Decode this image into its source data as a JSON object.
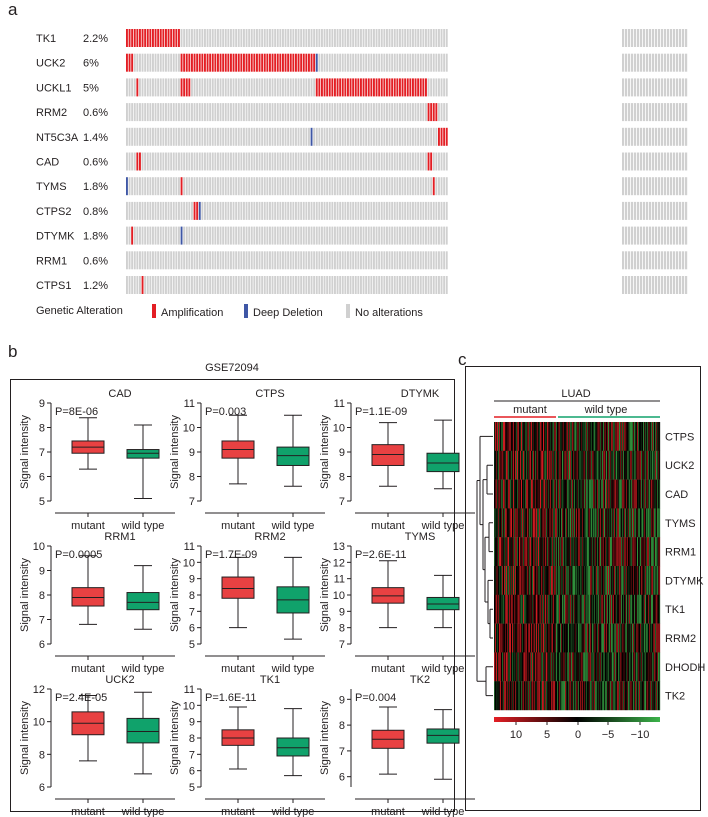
{
  "panel_labels": {
    "a": "a",
    "b": "b",
    "c": "c"
  },
  "colors": {
    "amplification": "#e31e24",
    "deep_deletion": "#3f57a6",
    "no_alteration": "#d0d0d0",
    "box_mutant": "#e84142",
    "box_wildtype": "#10a26b",
    "mutant_line": "#e31e24",
    "wildtype_line": "#10a26b",
    "heat_high": "#e31e24",
    "heat_mid": "#000000",
    "heat_low": "#3cb34a"
  },
  "chart_data": [
    {
      "type": "heatmap",
      "variant": "oncoprint",
      "genes": [
        {
          "name": "TK1",
          "pct": "2.2%"
        },
        {
          "name": "UCK2",
          "pct": "6%"
        },
        {
          "name": "UCKL1",
          "pct": "5%"
        },
        {
          "name": "RRM2",
          "pct": "0.6%"
        },
        {
          "name": "NT5C3A",
          "pct": "1.4%"
        },
        {
          "name": "CAD",
          "pct": "0.6%"
        },
        {
          "name": "TYMS",
          "pct": "1.8%"
        },
        {
          "name": "CTPS2",
          "pct": "0.8%"
        },
        {
          "name": "DTYMK",
          "pct": "1.8%"
        },
        {
          "name": "RRM1",
          "pct": "0.6%"
        },
        {
          "name": "CTPS1",
          "pct": "1.2%"
        }
      ],
      "n_samples_shown": 124,
      "n_samples_tail": 22,
      "alterations": [
        {
          "gene": 0,
          "type": "amp",
          "samples": [
            0,
            1,
            2,
            3,
            4,
            5,
            6,
            7,
            8,
            9,
            10,
            11,
            12,
            13,
            14,
            15,
            16,
            17,
            18,
            19,
            20
          ]
        },
        {
          "gene": 1,
          "type": "amp",
          "samples": [
            0,
            1,
            2,
            21,
            22,
            23,
            24,
            25,
            26,
            27,
            28,
            29,
            30,
            31,
            32,
            33,
            34,
            35,
            36,
            37,
            38,
            39,
            40,
            41,
            42,
            43,
            44,
            45,
            46,
            47,
            48,
            49,
            50,
            51,
            52,
            53,
            54,
            55,
            56,
            57,
            58,
            59,
            60,
            61,
            62,
            63,
            64,
            65,
            66,
            67,
            68,
            69,
            70,
            71,
            72
          ]
        },
        {
          "gene": 1,
          "type": "del",
          "samples": [
            73
          ]
        },
        {
          "gene": 2,
          "type": "amp",
          "samples": [
            4,
            21,
            22,
            23,
            24,
            73,
            74,
            75,
            76,
            77,
            78,
            79,
            80,
            81,
            82,
            83,
            84,
            85,
            86,
            87,
            88,
            89,
            90,
            91,
            92,
            93,
            94,
            95,
            96,
            97,
            98,
            99,
            100,
            101,
            102,
            103,
            104,
            105,
            106,
            107,
            108,
            109,
            110,
            111,
            112,
            113,
            114,
            115
          ]
        },
        {
          "gene": 3,
          "type": "amp",
          "samples": [
            116,
            117,
            118,
            119
          ]
        },
        {
          "gene": 4,
          "type": "amp",
          "samples": [
            120,
            121,
            122,
            123,
            124,
            125,
            126,
            127,
            128,
            129
          ]
        },
        {
          "gene": 4,
          "type": "del",
          "samples": [
            71,
            130
          ]
        },
        {
          "gene": 5,
          "type": "amp",
          "samples": [
            4,
            5,
            116,
            117
          ]
        },
        {
          "gene": 6,
          "type": "amp",
          "samples": [
            21,
            118,
            131,
            132,
            133,
            134,
            135,
            136,
            137,
            138
          ]
        },
        {
          "gene": 6,
          "type": "del",
          "samples": [
            0,
            139
          ]
        },
        {
          "gene": 7,
          "type": "amp",
          "samples": [
            26,
            27
          ]
        },
        {
          "gene": 7,
          "type": "del",
          "samples": [
            28,
            140,
            141,
            142
          ]
        },
        {
          "gene": 8,
          "type": "amp",
          "samples": [
            2,
            143,
            144,
            145,
            146,
            147,
            148,
            149,
            150
          ]
        },
        {
          "gene": 8,
          "type": "del",
          "samples": [
            21,
            151,
            152,
            153,
            154
          ]
        },
        {
          "gene": 9,
          "type": "amp",
          "samples": [
            155
          ]
        },
        {
          "gene": 9,
          "type": "del",
          "samples": [
            150,
            156
          ]
        },
        {
          "gene": 10,
          "type": "amp",
          "samples": [
            6,
            132,
            157,
            158,
            159,
            160,
            161,
            162,
            163
          ]
        }
      ],
      "legend": {
        "title": "Genetic Alteration",
        "items": [
          {
            "key": "amp",
            "label": "Amplification"
          },
          {
            "key": "del",
            "label": "Deep Deletion"
          },
          {
            "key": "none",
            "label": "No alterations"
          }
        ]
      }
    },
    {
      "type": "box",
      "title": "GSE72094",
      "ylabel": "Signal intensity",
      "categories": [
        "mutant",
        "wild type"
      ],
      "plots": [
        {
          "name": "CAD",
          "p": "P=8E-06",
          "yticks": [
            5,
            6,
            7,
            8,
            9
          ],
          "ylim": [
            5,
            9
          ],
          "boxes": [
            {
              "min": 6.3,
              "q1": 6.95,
              "median": 7.2,
              "q3": 7.45,
              "max": 8.4
            },
            {
              "min": 5.1,
              "q1": 6.75,
              "median": 6.95,
              "q3": 7.1,
              "max": 8.1
            }
          ]
        },
        {
          "name": "CTPS",
          "p": "P=0.003",
          "yticks": [
            7,
            8,
            9,
            10,
            11
          ],
          "ylim": [
            7,
            11
          ],
          "boxes": [
            {
              "min": 7.7,
              "q1": 8.75,
              "median": 9.1,
              "q3": 9.45,
              "max": 10.5
            },
            {
              "min": 7.6,
              "q1": 8.45,
              "median": 8.85,
              "q3": 9.2,
              "max": 10.5
            }
          ]
        },
        {
          "name": "DTYMK",
          "p": "P=1.1E-09",
          "yticks": [
            7,
            8,
            9,
            10,
            11
          ],
          "ylim": [
            7,
            11
          ],
          "boxes": [
            {
              "min": 7.6,
              "q1": 8.45,
              "median": 8.9,
              "q3": 9.3,
              "max": 10.2
            },
            {
              "min": 7.5,
              "q1": 8.2,
              "median": 8.55,
              "q3": 8.95,
              "max": 10.3
            }
          ]
        },
        {
          "name": "RRM1",
          "p": "P=0.0005",
          "yticks": [
            6,
            7,
            8,
            9,
            10
          ],
          "ylim": [
            6,
            10
          ],
          "boxes": [
            {
              "min": 6.8,
              "q1": 7.55,
              "median": 7.9,
              "q3": 8.3,
              "max": 9.6
            },
            {
              "min": 6.6,
              "q1": 7.4,
              "median": 7.7,
              "q3": 8.1,
              "max": 9.2
            }
          ]
        },
        {
          "name": "RRM2",
          "p": "P=1.7E-09",
          "yticks": [
            5,
            6,
            7,
            8,
            9,
            10,
            11
          ],
          "ylim": [
            5,
            11
          ],
          "boxes": [
            {
              "min": 6.0,
              "q1": 7.8,
              "median": 8.4,
              "q3": 9.1,
              "max": 10.3
            },
            {
              "min": 5.3,
              "q1": 6.9,
              "median": 7.7,
              "q3": 8.5,
              "max": 10.3
            }
          ]
        },
        {
          "name": "TYMS",
          "p": "P=2.6E-11",
          "yticks": [
            7,
            8,
            9,
            10,
            11,
            12,
            13
          ],
          "ylim": [
            7,
            13
          ],
          "boxes": [
            {
              "min": 8.0,
              "q1": 9.5,
              "median": 9.95,
              "q3": 10.45,
              "max": 12.1
            },
            {
              "min": 8.0,
              "q1": 9.1,
              "median": 9.45,
              "q3": 9.85,
              "max": 11.2
            }
          ]
        },
        {
          "name": "UCK2",
          "p": "P=2.4E-05",
          "yticks": [
            6,
            8,
            10,
            12
          ],
          "ylim": [
            6,
            12
          ],
          "boxes": [
            {
              "min": 7.6,
              "q1": 9.2,
              "median": 9.9,
              "q3": 10.6,
              "max": 11.6
            },
            {
              "min": 6.8,
              "q1": 8.7,
              "median": 9.4,
              "q3": 10.2,
              "max": 11.8
            }
          ]
        },
        {
          "name": "TK1",
          "p": "P=1.6E-11",
          "yticks": [
            5,
            6,
            7,
            8,
            9,
            10,
            11
          ],
          "ylim": [
            5,
            11
          ],
          "boxes": [
            {
              "min": 6.1,
              "q1": 7.55,
              "median": 8.0,
              "q3": 8.5,
              "max": 9.9
            },
            {
              "min": 5.7,
              "q1": 6.9,
              "median": 7.4,
              "q3": 8.0,
              "max": 9.8
            }
          ]
        },
        {
          "name": "TK2",
          "p": "P=0.004",
          "yticks": [
            6,
            7,
            8,
            9
          ],
          "ylim": [
            5.6,
            9.4
          ],
          "boxes": [
            {
              "min": 6.1,
              "q1": 7.1,
              "median": 7.45,
              "q3": 7.8,
              "max": 8.7
            },
            {
              "min": 5.9,
              "q1": 7.3,
              "median": 7.6,
              "q3": 7.85,
              "max": 8.6
            }
          ]
        }
      ]
    },
    {
      "type": "heatmap",
      "title": "LUAD",
      "groups": [
        "mutant",
        "wild type"
      ],
      "rows": [
        "CTPS",
        "UCK2",
        "CAD",
        "TYMS",
        "RRM1",
        "DTYMK",
        "TK1",
        "RRM2",
        "DHODH",
        "TK2"
      ],
      "colorbar_ticks": [
        "10",
        "5",
        "0",
        "−5",
        "−10"
      ],
      "range": [
        -10,
        10
      ]
    }
  ]
}
